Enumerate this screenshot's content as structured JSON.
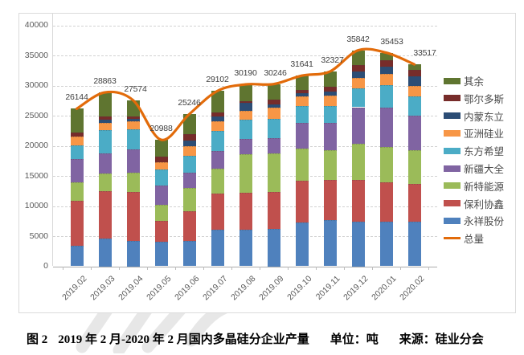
{
  "chart_data": {
    "type": "combo-stacked-bar-line",
    "title": "",
    "categories": [
      "2019.02",
      "2019.03",
      "2019.04",
      "2019.05",
      "2019.06",
      "2019.07",
      "2019.08",
      "2019.09",
      "2019.10",
      "2019.11",
      "2019.12",
      "2020.01",
      "2020.02"
    ],
    "stack_series": [
      {
        "name": "永祥股份",
        "color": "#4F81BD",
        "values": [
          3460,
          4550,
          4250,
          4080,
          4260,
          6010,
          6060,
          6150,
          7280,
          7630,
          7400,
          7410,
          7410
        ]
      },
      {
        "name": "保利协鑫",
        "color": "#C0504D",
        "values": [
          7360,
          7950,
          8120,
          3510,
          4820,
          6060,
          6140,
          6130,
          6930,
          6660,
          6900,
          6490,
          6230
        ]
      },
      {
        "name": "新特能源",
        "color": "#9BBB59",
        "values": [
          3160,
          2940,
          3200,
          2630,
          3870,
          4120,
          6360,
          6410,
          5350,
          4920,
          5970,
          5880,
          5610
        ]
      },
      {
        "name": "新疆大全",
        "color": "#8064A2",
        "values": [
          3860,
          3290,
          3780,
          3160,
          2540,
          2990,
          2630,
          2630,
          4210,
          4650,
          6130,
          6570,
          5800
        ]
      },
      {
        "name": "东方希望",
        "color": "#4BACC6",
        "values": [
          2280,
          3820,
          3420,
          2630,
          2900,
          3330,
          3200,
          3160,
          2810,
          2800,
          3160,
          3700,
          3160
        ]
      },
      {
        "name": "亚洲硅业",
        "color": "#F79646",
        "values": [
          1410,
          1230,
          1320,
          1320,
          1580,
          1500,
          1410,
          1840,
          1580,
          1670,
          1760,
          1890,
          1720
        ]
      },
      {
        "name": "内蒙东立",
        "color": "#2C4D75",
        "values": [
          0,
          530,
          400,
          0,
          960,
          870,
          1310,
          600,
          530,
          700,
          1050,
          1230,
          1580
        ]
      },
      {
        "name": "鄂尔多斯",
        "color": "#772C2A",
        "values": [
          610,
          570,
          390,
          880,
          1010,
          700,
          350,
          790,
          610,
          710,
          1050,
          1050,
          1050
        ]
      },
      {
        "name": "其余",
        "color": "#5F7530",
        "values": [
          4004,
          3983,
          2694,
          2778,
          3306,
          3522,
          2730,
          2536,
          2341,
          2587,
          2422,
          1233,
          957
        ]
      }
    ],
    "line_series": {
      "name": "总量",
      "color": "#E26B0A",
      "values": [
        26144,
        28863,
        27574,
        20988,
        25246,
        29102,
        30190,
        30246,
        31641,
        32327,
        35842,
        35453,
        33517
      ]
    },
    "data_labels": [
      "26144",
      "28863",
      "27574",
      "20988",
      "25246",
      "29102",
      "30190",
      "30246",
      "31641",
      "32327",
      "35842",
      "35453",
      "33517"
    ],
    "y_axis": {
      "min": 0,
      "max": 40000,
      "step": 5000,
      "ticks": [
        "0",
        "5000",
        "10000",
        "15000",
        "20000",
        "25000",
        "30000",
        "35000",
        "40000"
      ]
    },
    "legend": {
      "position": "right",
      "order": [
        "其余",
        "鄂尔多斯",
        "内蒙东立",
        "亚洲硅业",
        "东方希望",
        "新疆大全",
        "新特能源",
        "保利协鑫",
        "永祥股份",
        "总量"
      ]
    },
    "grid": "horizontal-dashed",
    "unit": "吨"
  },
  "caption": {
    "figure_label": "图 2",
    "title": "2019 年 2 月-2020 年 2 月国内多晶硅分企业产量",
    "unit_label": "单位：吨",
    "source_label": "来源：硅业分会"
  }
}
